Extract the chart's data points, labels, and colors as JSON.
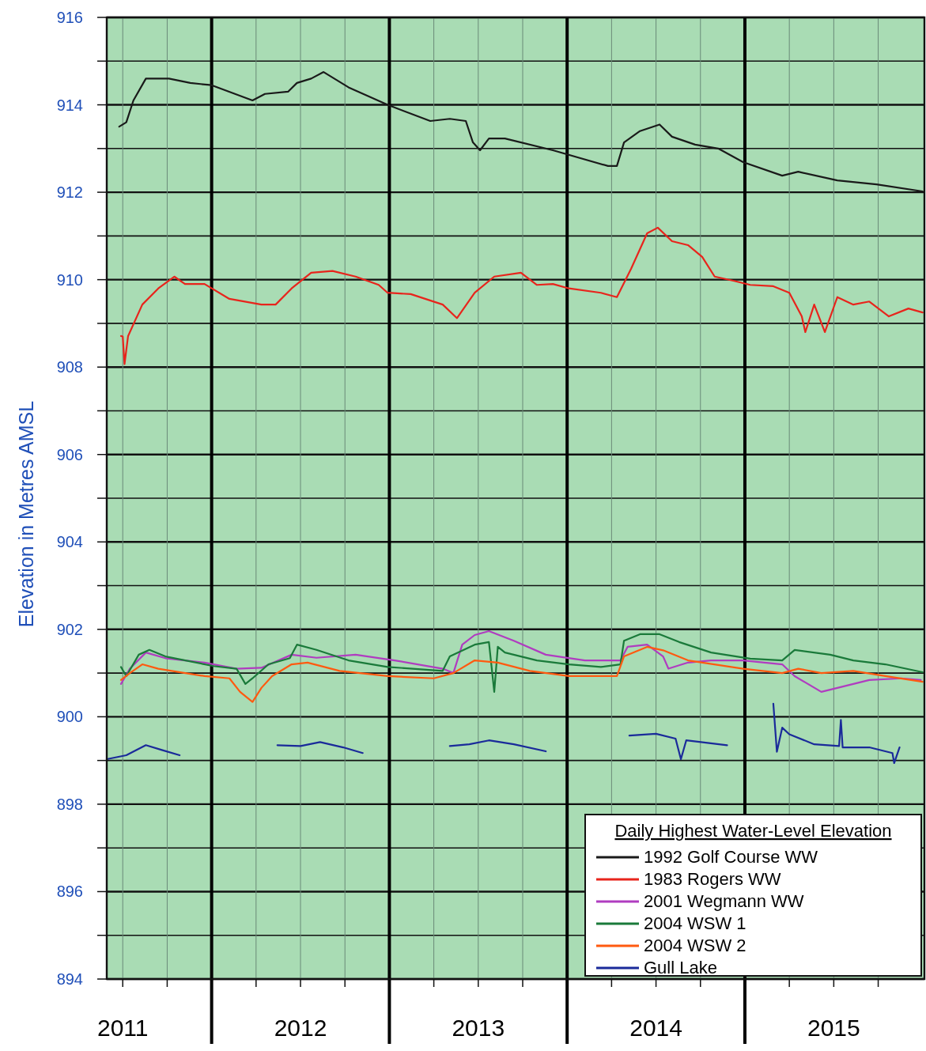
{
  "chart_data": {
    "type": "line",
    "ylabel": "Elevation in Metres AMSL",
    "legend_title": "Daily Highest Water-Level Elevation",
    "legend": "bottom right",
    "grid": true,
    "marker": "none",
    "line_style": "solid",
    "xlim": [
      2011.41,
      2016.01
    ],
    "xticks": [
      {
        "value": 2011.5,
        "label": null
      },
      {
        "value": 2011.75,
        "label": null
      },
      {
        "value": 2012.25,
        "label": null
      },
      {
        "value": 2012.5,
        "label": null
      },
      {
        "value": 2012.75,
        "label": null
      },
      {
        "value": 2013.25,
        "label": null
      },
      {
        "value": 2013.5,
        "label": null
      },
      {
        "value": 2013.75,
        "label": null
      },
      {
        "value": 2014.25,
        "label": null
      },
      {
        "value": 2014.5,
        "label": null
      },
      {
        "value": 2014.75,
        "label": null
      },
      {
        "value": 2015.25,
        "label": null
      },
      {
        "value": 2015.5,
        "label": null
      },
      {
        "value": 2015.75,
        "label": null
      },
      {
        "value": 2011.5,
        "label": "2011"
      },
      {
        "value": 2012.5,
        "label": "2012"
      },
      {
        "value": 2013.5,
        "label": "2013"
      },
      {
        "value": 2014.5,
        "label": "2014"
      },
      {
        "value": 2015.5,
        "label": "2015"
      }
    ],
    "ylim": [
      894,
      916
    ],
    "yticks": [
      894,
      {
        "value": 895,
        "label": null
      },
      896,
      {
        "value": 897,
        "label": null
      },
      898,
      {
        "value": 899,
        "label": null
      },
      900,
      {
        "value": 901,
        "label": null
      },
      902,
      {
        "value": 903,
        "label": null
      },
      904,
      {
        "value": 905,
        "label": null
      },
      906,
      {
        "value": 907,
        "label": null
      },
      908,
      {
        "value": 909,
        "label": null
      },
      910,
      {
        "value": 911,
        "label": null
      },
      912,
      {
        "value": 913,
        "label": null
      },
      914,
      {
        "value": 915,
        "label": null
      },
      916
    ],
    "ref_lines": [
      {
        "axis": "x",
        "value": 2012,
        "color": "#000000"
      },
      {
        "axis": "x",
        "value": 2013,
        "color": "#000000"
      },
      {
        "axis": "x",
        "value": 2014,
        "color": "#000000"
      },
      {
        "axis": "x",
        "value": 2015,
        "color": "#000000"
      }
    ],
    "series": [
      {
        "name": "1992 Golf Course WW",
        "color": "#1a1a1a",
        "x": [
          2011.48,
          2011.52,
          2011.56,
          2011.63,
          2011.76,
          2011.88,
          2012.0,
          2012.23,
          2012.3,
          2012.43,
          2012.48,
          2012.56,
          2012.63,
          2012.77,
          2012.99,
          2013.23,
          2013.34,
          2013.43,
          2013.47,
          2013.51,
          2013.56,
          2013.65,
          2013.92,
          2014.23,
          2014.28,
          2014.32,
          2014.41,
          2014.52,
          2014.59,
          2014.72,
          2014.85,
          2014.99,
          2015.21,
          2015.3,
          2015.52,
          2015.74,
          2016.0
        ],
        "values": [
          913.5,
          913.6,
          914.1,
          914.6,
          914.6,
          914.5,
          914.45,
          914.1,
          914.25,
          914.3,
          914.5,
          914.6,
          914.75,
          914.4,
          914.0,
          913.63,
          913.68,
          913.63,
          913.14,
          912.96,
          913.23,
          913.23,
          912.96,
          912.6,
          912.6,
          913.14,
          913.4,
          913.55,
          913.27,
          913.09,
          913.0,
          912.69,
          912.38,
          912.47,
          912.27,
          912.18,
          912.02
        ]
      },
      {
        "name": "1983 Rogers WW",
        "color": "#e8241c",
        "x": [
          2011.49,
          2011.5,
          2011.51,
          2011.53,
          2011.61,
          2011.7,
          2011.79,
          2011.85,
          2011.96,
          2012.1,
          2012.28,
          2012.36,
          2012.45,
          2012.56,
          2012.68,
          2012.81,
          2012.94,
          2012.99,
          2013.12,
          2013.3,
          2013.38,
          2013.48,
          2013.59,
          2013.74,
          2013.83,
          2013.92,
          2014.01,
          2014.19,
          2014.28,
          2014.36,
          2014.45,
          2014.51,
          2014.59,
          2014.68,
          2014.76,
          2014.83,
          2014.94,
          2015.03,
          2015.16,
          2015.25,
          2015.32,
          2015.34,
          2015.39,
          2015.45,
          2015.52,
          2015.61,
          2015.7,
          2015.81,
          2015.92,
          2016.0
        ],
        "values": [
          908.71,
          908.7,
          908.07,
          908.71,
          909.43,
          909.8,
          910.07,
          909.9,
          909.9,
          909.56,
          909.43,
          909.43,
          909.8,
          910.16,
          910.2,
          910.07,
          909.88,
          909.7,
          909.67,
          909.43,
          909.12,
          909.7,
          910.07,
          910.16,
          909.88,
          909.9,
          909.8,
          909.7,
          909.6,
          910.25,
          911.06,
          911.19,
          910.88,
          910.79,
          910.52,
          910.07,
          909.97,
          909.88,
          909.85,
          909.7,
          909.16,
          908.8,
          909.43,
          908.8,
          909.6,
          909.43,
          909.5,
          909.16,
          909.34,
          909.25
        ]
      },
      {
        "name": "2001 Wegmann WW",
        "color": "#b03cc0",
        "x": [
          2011.49,
          2011.54,
          2011.63,
          2011.74,
          2011.96,
          2012.14,
          2012.28,
          2012.45,
          2012.59,
          2012.81,
          2013.03,
          2013.3,
          2013.36,
          2013.41,
          2013.48,
          2013.56,
          2013.7,
          2013.88,
          2014.1,
          2014.3,
          2014.34,
          2014.45,
          2014.54,
          2014.57,
          2014.68,
          2014.81,
          2014.99,
          2015.21,
          2015.28,
          2015.43,
          2015.52,
          2015.7,
          2015.88,
          2015.99
        ],
        "values": [
          900.75,
          901.1,
          901.47,
          901.34,
          901.24,
          901.1,
          901.12,
          901.42,
          901.35,
          901.42,
          901.29,
          901.1,
          901.0,
          901.65,
          901.87,
          901.96,
          901.74,
          901.42,
          901.29,
          901.29,
          901.6,
          901.65,
          901.38,
          901.1,
          901.24,
          901.29,
          901.29,
          901.2,
          900.93,
          900.57,
          900.66,
          900.84,
          900.88,
          900.84
        ]
      },
      {
        "name": "2004 WSW 1",
        "color": "#1a7a3a",
        "x": [
          2011.49,
          2011.52,
          2011.59,
          2011.65,
          2011.74,
          2012.01,
          2012.14,
          2012.19,
          2012.23,
          2012.32,
          2012.44,
          2012.48,
          2012.59,
          2012.77,
          2012.99,
          2013.3,
          2013.34,
          2013.48,
          2013.56,
          2013.59,
          2013.61,
          2013.65,
          2013.83,
          2014.01,
          2014.19,
          2014.3,
          2014.32,
          2014.41,
          2014.52,
          2014.63,
          2014.81,
          2015.03,
          2015.21,
          2015.28,
          2015.48,
          2015.61,
          2015.79,
          2016.0
        ],
        "values": [
          901.14,
          900.93,
          901.42,
          901.53,
          901.38,
          901.16,
          901.1,
          900.75,
          900.88,
          901.2,
          901.34,
          901.65,
          901.53,
          901.29,
          901.14,
          901.05,
          901.38,
          901.65,
          901.71,
          900.57,
          901.6,
          901.47,
          901.29,
          901.2,
          901.14,
          901.2,
          901.74,
          901.89,
          901.89,
          901.71,
          901.47,
          901.33,
          901.29,
          901.53,
          901.42,
          901.29,
          901.2,
          901.02
        ]
      },
      {
        "name": "2004 WSW 2",
        "color": "#ff5a10",
        "x": [
          2011.49,
          2011.54,
          2011.61,
          2011.7,
          2011.96,
          2012.1,
          2012.16,
          2012.23,
          2012.28,
          2012.34,
          2012.45,
          2012.54,
          2012.72,
          2012.99,
          2013.25,
          2013.36,
          2013.48,
          2013.61,
          2013.79,
          2014.01,
          2014.28,
          2014.32,
          2014.45,
          2014.54,
          2014.68,
          2014.99,
          2015.21,
          2015.3,
          2015.43,
          2015.61,
          2015.79,
          2016.0
        ],
        "values": [
          900.84,
          901.0,
          901.2,
          901.1,
          900.93,
          900.88,
          900.57,
          900.34,
          900.66,
          900.93,
          901.2,
          901.24,
          901.05,
          900.93,
          900.88,
          901.0,
          901.29,
          901.24,
          901.05,
          900.93,
          900.93,
          901.38,
          901.6,
          901.52,
          901.29,
          901.1,
          901.0,
          901.1,
          901.0,
          901.05,
          900.93,
          900.8
        ]
      },
      {
        "name": "Gull Lake",
        "color": "#1a2a9a",
        "x": [
          2011.41,
          2011.52,
          2011.63,
          2011.72,
          2011.82,
          2012.0,
          2012.37,
          2012.5,
          2012.61,
          2012.74,
          2012.85,
          2013.0,
          2013.34,
          2013.45,
          2013.56,
          2013.7,
          2013.88,
          2014.1,
          2014.35,
          2014.5,
          2014.61,
          2014.64,
          2014.67,
          2014.9,
          2015.0,
          2015.16,
          2015.18,
          2015.21,
          2015.25,
          2015.39,
          2015.53,
          2015.54,
          2015.55,
          2015.7,
          2015.83,
          2015.84,
          2015.87
        ],
        "values": [
          899.03,
          899.12,
          899.35,
          899.24,
          899.12,
          null,
          899.35,
          899.33,
          899.42,
          899.3,
          899.17,
          null,
          899.33,
          899.37,
          899.46,
          899.37,
          899.21,
          null,
          899.57,
          899.61,
          899.5,
          899.03,
          899.46,
          899.35,
          null,
          900.3,
          899.2,
          899.75,
          899.6,
          899.37,
          899.33,
          899.93,
          899.3,
          899.3,
          899.17,
          898.94,
          899.3
        ]
      }
    ]
  }
}
